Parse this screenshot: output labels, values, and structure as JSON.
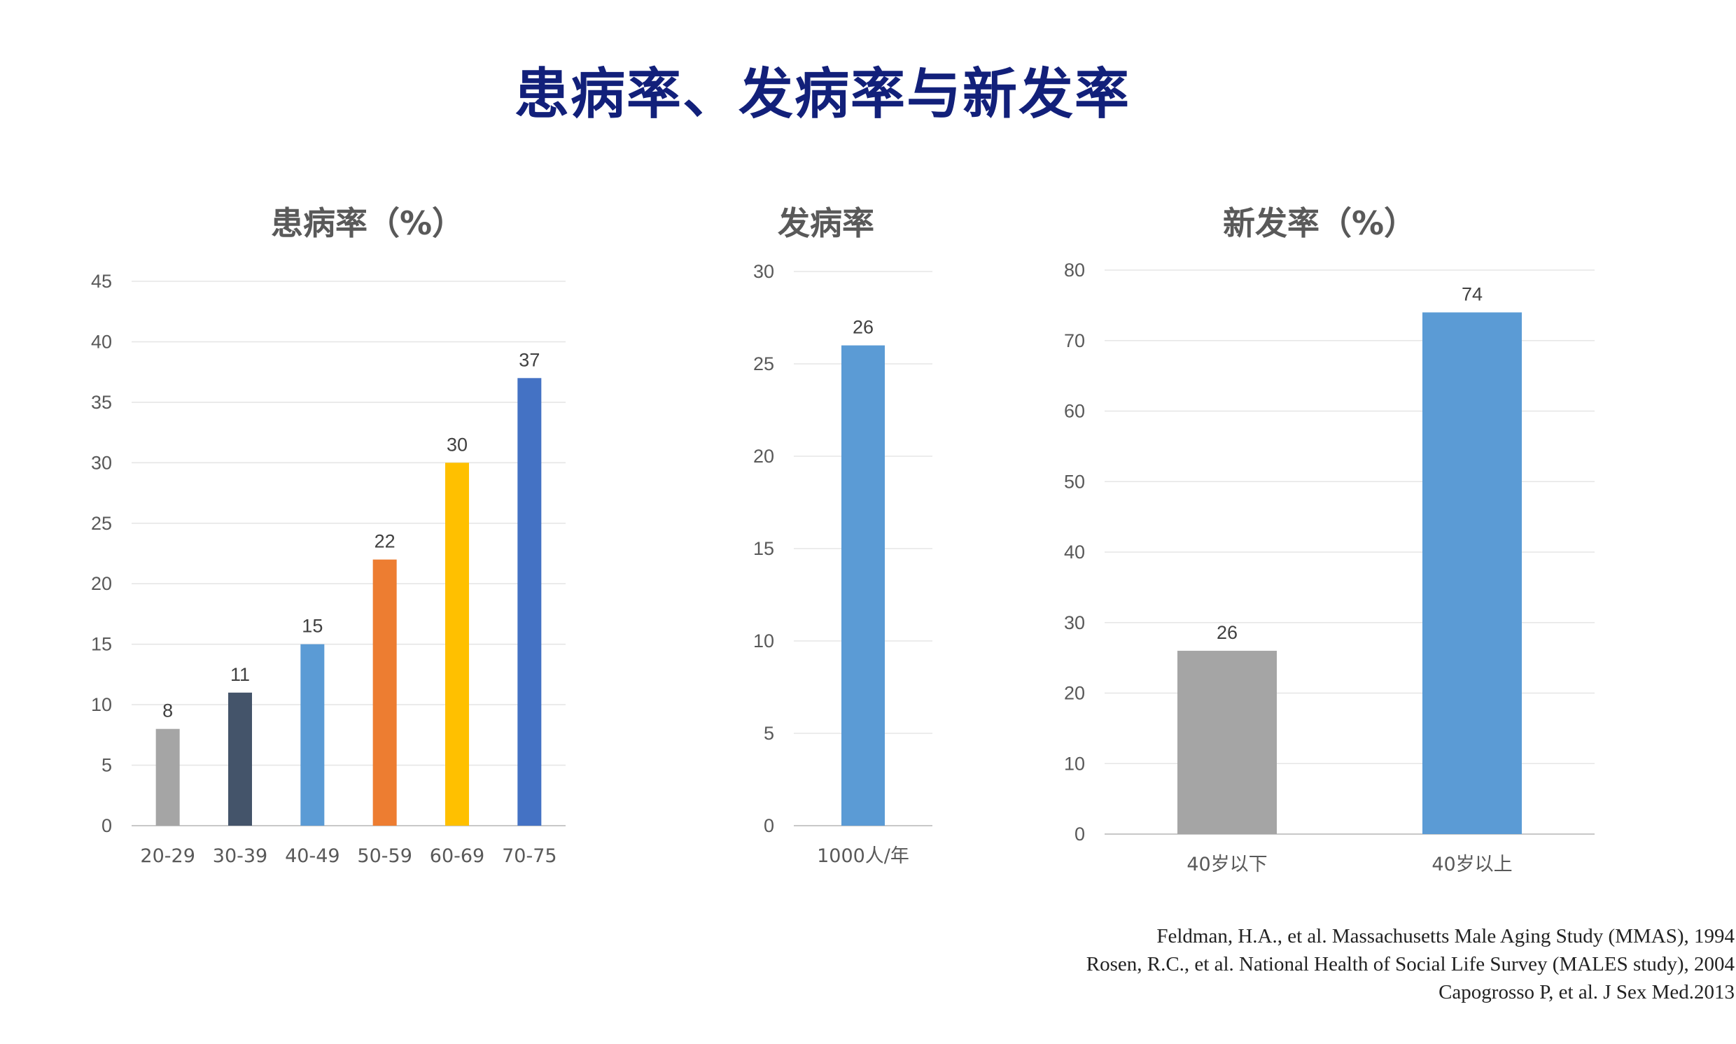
{
  "title": "患病率、发病率与新发率",
  "chart_data": [
    {
      "type": "bar",
      "title": "患病率（%）",
      "categories": [
        "20-29",
        "30-39",
        "40-49",
        "50-59",
        "60-69",
        "70-75"
      ],
      "values": [
        8,
        11,
        15,
        22,
        30,
        37
      ],
      "colors": [
        "#a5a5a5",
        "#44546a",
        "#5b9bd5",
        "#ed7d31",
        "#ffc000",
        "#4472c4"
      ],
      "ylim": [
        0,
        45
      ],
      "yticks": [
        0,
        5,
        10,
        15,
        20,
        25,
        30,
        35,
        40,
        45
      ],
      "grid": true,
      "data_labels": true
    },
    {
      "type": "bar",
      "title": "发病率",
      "categories": [
        "1000人/年"
      ],
      "values": [
        26
      ],
      "colors": [
        "#5b9bd5"
      ],
      "ylim": [
        0,
        30
      ],
      "yticks": [
        0,
        5,
        10,
        15,
        20,
        25,
        30
      ],
      "grid": true,
      "data_labels": true
    },
    {
      "type": "bar",
      "title": "新发率（%）",
      "categories": [
        "40岁以下",
        "40岁以上"
      ],
      "values": [
        26,
        74
      ],
      "colors": [
        "#a5a5a5",
        "#5b9bd5"
      ],
      "ylim": [
        0,
        80
      ],
      "yticks": [
        0,
        10,
        20,
        30,
        40,
        50,
        60,
        70,
        80
      ],
      "grid": true,
      "data_labels": true
    }
  ],
  "references": [
    "Feldman, H.A., et al. Massachusetts Male Aging Study (MMAS), 1994",
    "Rosen, R.C., et al. National Health of Social Life Survey (MALES study), 2004",
    "Capogrosso P, et al. J Sex Med.2013"
  ]
}
